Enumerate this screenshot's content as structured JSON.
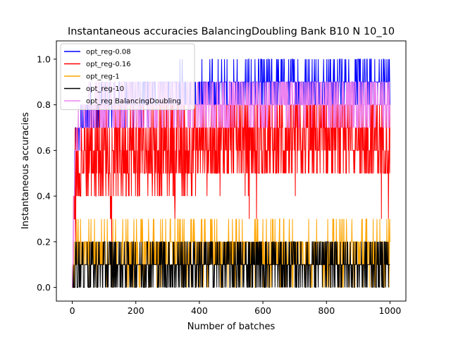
{
  "chart_data": {
    "type": "line",
    "title": "Instantaneous accuracies BalancingDoubling Bank B10 N 10_10",
    "xlabel": "Number of batches",
    "ylabel": "Instantaneous accuracies",
    "xlim": [
      -50,
      1050
    ],
    "ylim": [
      -0.06,
      1.08
    ],
    "xticks": [
      0,
      200,
      400,
      600,
      800,
      1000
    ],
    "yticks": [
      0.0,
      0.2,
      0.4,
      0.6,
      0.8,
      1.0
    ],
    "xtick_labels": [
      "0",
      "200",
      "400",
      "600",
      "800",
      "1000"
    ],
    "ytick_labels": [
      "0.0",
      "0.2",
      "0.4",
      "0.6",
      "0.8",
      "1.0"
    ],
    "grid": false,
    "legend_position": "top-left",
    "x": {
      "start": 0,
      "end": 1000,
      "step": 1
    },
    "series": [
      {
        "name": "opt_reg-0.08",
        "color": "#0000ff",
        "profile": [
          [
            0,
            0.0
          ],
          [
            10,
            0.6
          ],
          [
            30,
            0.75
          ],
          [
            100,
            0.8
          ],
          [
            300,
            0.85
          ],
          [
            600,
            0.88
          ],
          [
            1000,
            0.9
          ]
        ],
        "spread": 0.1
      },
      {
        "name": "opt_reg-0.16",
        "color": "#ff0000",
        "profile": [
          [
            0,
            0.0
          ],
          [
            10,
            0.55
          ],
          [
            50,
            0.6
          ],
          [
            200,
            0.6
          ],
          [
            500,
            0.65
          ],
          [
            1000,
            0.65
          ]
        ],
        "spread": 0.2
      },
      {
        "name": "opt_reg-1",
        "color": "#ffa500",
        "profile": [
          [
            0,
            0.0
          ],
          [
            10,
            0.15
          ],
          [
            100,
            0.15
          ],
          [
            1000,
            0.15
          ]
        ],
        "spread": 0.12
      },
      {
        "name": "opt_reg-10",
        "color": "#000000",
        "profile": [
          [
            0,
            0.0
          ],
          [
            10,
            0.1
          ],
          [
            1000,
            0.1
          ]
        ],
        "spread": 0.1
      },
      {
        "name": "opt_reg BalancingDoubling",
        "color": "#ee82ee",
        "profile": [
          [
            0,
            0.0
          ],
          [
            10,
            0.65
          ],
          [
            30,
            0.75
          ],
          [
            100,
            0.8
          ],
          [
            1000,
            0.82
          ]
        ],
        "spread": 0.1
      }
    ]
  }
}
